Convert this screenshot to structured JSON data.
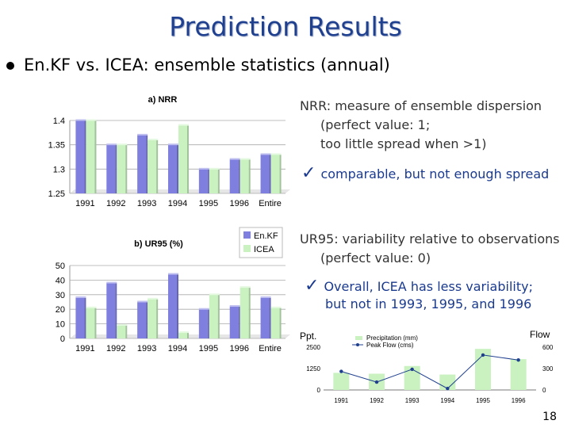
{
  "slide": {
    "title": "Prediction Results",
    "bullet": "En.KF vs. ICEA: ensemble statistics (annual)",
    "page_number": "18"
  },
  "notes": {
    "nrr_line1": "NRR: measure of ensemble dispersion",
    "nrr_line2": "(perfect value: 1;",
    "nrr_line3": "too little spread when >1)",
    "nrr_check": "comparable, but not enough spread",
    "ur_line1": "UR95: variability relative to observations",
    "ur_line2": "(perfect value: 0)",
    "ur_check1": "Overall, ICEA has less variability;",
    "ur_check2": "but not in 1993, 1995, and 1996"
  },
  "chart_data": [
    {
      "type": "bar",
      "title": "a) NRR",
      "categories": [
        "1991",
        "1992",
        "1993",
        "1994",
        "1995",
        "1996",
        "Entire"
      ],
      "ylim": [
        1.25,
        1.4
      ],
      "yticks": [
        "1.4",
        "1.35",
        "1.3",
        "1.25"
      ],
      "grid": true,
      "series": [
        {
          "name": "En.KF",
          "color": "#7f7fe0",
          "values": [
            1.4,
            1.35,
            1.37,
            1.35,
            1.3,
            1.32,
            1.33
          ]
        },
        {
          "name": "ICEA",
          "color": "#c9f2c0",
          "values": [
            1.4,
            1.35,
            1.36,
            1.39,
            1.3,
            1.32,
            1.33
          ]
        }
      ]
    },
    {
      "type": "bar",
      "title": "b) UR95 (%)",
      "categories": [
        "1991",
        "1992",
        "1993",
        "1994",
        "1995",
        "1996",
        "Entire"
      ],
      "ylim": [
        0,
        50
      ],
      "yticks": [
        "50",
        "40",
        "30",
        "20",
        "10",
        "0"
      ],
      "grid": true,
      "legend": "top-right",
      "series": [
        {
          "name": "En.KF",
          "color": "#7f7fe0",
          "values": [
            28,
            38,
            25,
            44,
            20,
            22,
            28
          ]
        },
        {
          "name": "ICEA",
          "color": "#c9f2c0",
          "values": [
            21,
            9,
            27,
            4,
            30,
            35,
            21
          ]
        }
      ]
    },
    {
      "type": "bar",
      "left_label": "Ppt.",
      "right_label": "Flow",
      "categories": [
        "1991",
        "1992",
        "1993",
        "1994",
        "1995",
        "1996"
      ],
      "ylim": [
        0,
        2500
      ],
      "yticks": [
        "2500",
        "1250",
        "0"
      ],
      "y2lim": [
        0,
        600
      ],
      "y2ticks": [
        "600",
        "300",
        "0"
      ],
      "series": [
        {
          "name": "Precipitation (mm)",
          "kind": "bar",
          "color": "#c9f2c0",
          "values": [
            1000,
            950,
            1400,
            900,
            2400,
            1800
          ]
        },
        {
          "name": "Peak Flow (cms)",
          "kind": "line",
          "color": "#1f3f8f",
          "axis": "right",
          "values": [
            260,
            110,
            290,
            20,
            490,
            420
          ]
        }
      ]
    }
  ]
}
